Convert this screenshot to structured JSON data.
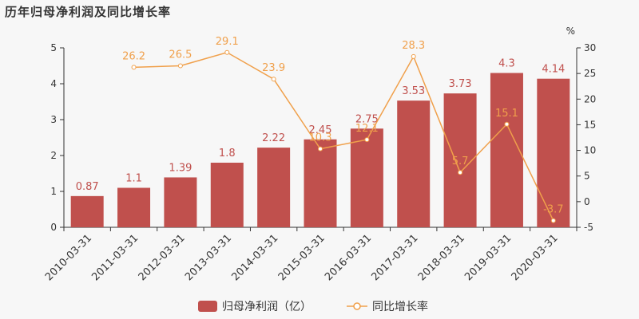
{
  "title": "历年归母净利润及同比增长率",
  "chart_data": {
    "type": "bar",
    "categories": [
      "2010-03-31",
      "2011-03-31",
      "2012-03-31",
      "2013-03-31",
      "2014-03-31",
      "2015-03-31",
      "2016-03-31",
      "2017-03-31",
      "2018-03-31",
      "2019-03-31",
      "2020-03-31"
    ],
    "series": [
      {
        "name": "归母净利润（亿）",
        "type": "bar",
        "axis": "left",
        "color": "#c0504d",
        "values": [
          0.87,
          1.1,
          1.39,
          1.8,
          2.22,
          2.45,
          2.75,
          3.53,
          3.73,
          4.3,
          4.14
        ]
      },
      {
        "name": "同比增长率",
        "type": "line",
        "axis": "right",
        "color": "#f0a04b",
        "values": [
          null,
          26.2,
          26.5,
          29.1,
          23.9,
          10.3,
          12.1,
          28.3,
          5.7,
          15.1,
          -3.7
        ]
      }
    ],
    "y_left": {
      "range": [
        0,
        5
      ],
      "ticks": [
        0,
        1,
        2,
        3,
        4,
        5
      ]
    },
    "y_right": {
      "unit": "%",
      "range": [
        -5,
        30
      ],
      "ticks": [
        -5,
        0,
        5,
        10,
        15,
        20,
        25,
        30
      ]
    },
    "legend_position": "bottom-center"
  }
}
